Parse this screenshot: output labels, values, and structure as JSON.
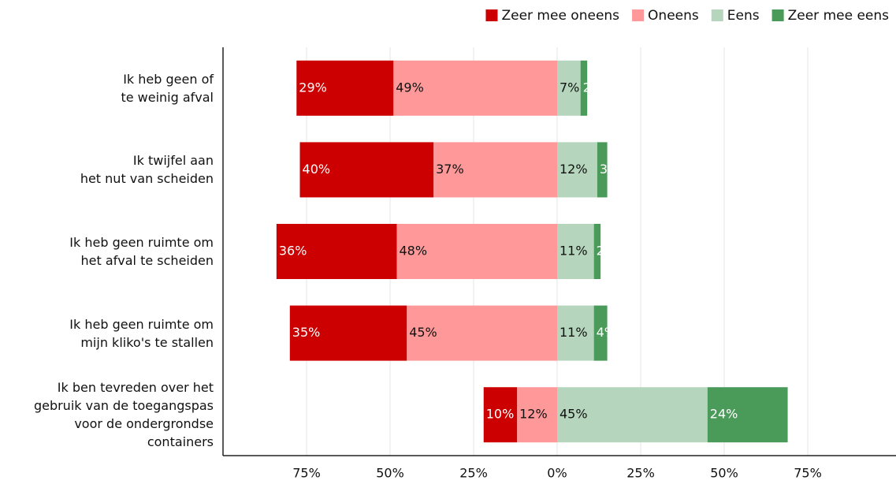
{
  "chart_data": {
    "type": "diverging_bar",
    "categories": [
      "Ik heb geen of\nte weinig afval",
      "Ik twijfel aan\nhet nut van scheiden",
      "Ik heb geen ruimte om\nhet afval te scheiden",
      "Ik heb geen ruimte om\nmijn kliko's te stallen",
      "Ik ben tevreden over het\ngebruik van de toegangspas\nvoor de ondergrondse\ncontainers"
    ],
    "series": [
      {
        "name": "Zeer mee oneens",
        "color": "#cc0000",
        "values": [
          29,
          40,
          36,
          35,
          10
        ],
        "value_labels": [
          "29%",
          "40%",
          "36%",
          "35%",
          "10%"
        ]
      },
      {
        "name": "Oneens",
        "color": "#ff9999",
        "values": [
          49,
          37,
          48,
          45,
          12
        ],
        "value_labels": [
          "49%",
          "37%",
          "48%",
          "45%",
          "12%"
        ]
      },
      {
        "name": "Eens",
        "color": "#b5d6bd",
        "values": [
          7,
          12,
          11,
          11,
          45
        ],
        "value_labels": [
          "7%",
          "12%",
          "11%",
          "11%",
          "45%"
        ]
      },
      {
        "name": "Zeer mee eens",
        "color": "#4a9a5a",
        "values": [
          2,
          3,
          2,
          4,
          24
        ],
        "value_labels": [
          "2%",
          "3%",
          "2%",
          "4%",
          "24%"
        ]
      }
    ],
    "xlim": [
      -100,
      100
    ],
    "xticks": [
      {
        "value": -75,
        "label": "75%"
      },
      {
        "value": -50,
        "label": "50%"
      },
      {
        "value": -25,
        "label": "25%"
      },
      {
        "value": 0,
        "label": "0%"
      },
      {
        "value": 25,
        "label": "25%"
      },
      {
        "value": 50,
        "label": "50%"
      },
      {
        "value": 75,
        "label": "75%"
      }
    ],
    "grid": true,
    "legend": "top-right"
  }
}
